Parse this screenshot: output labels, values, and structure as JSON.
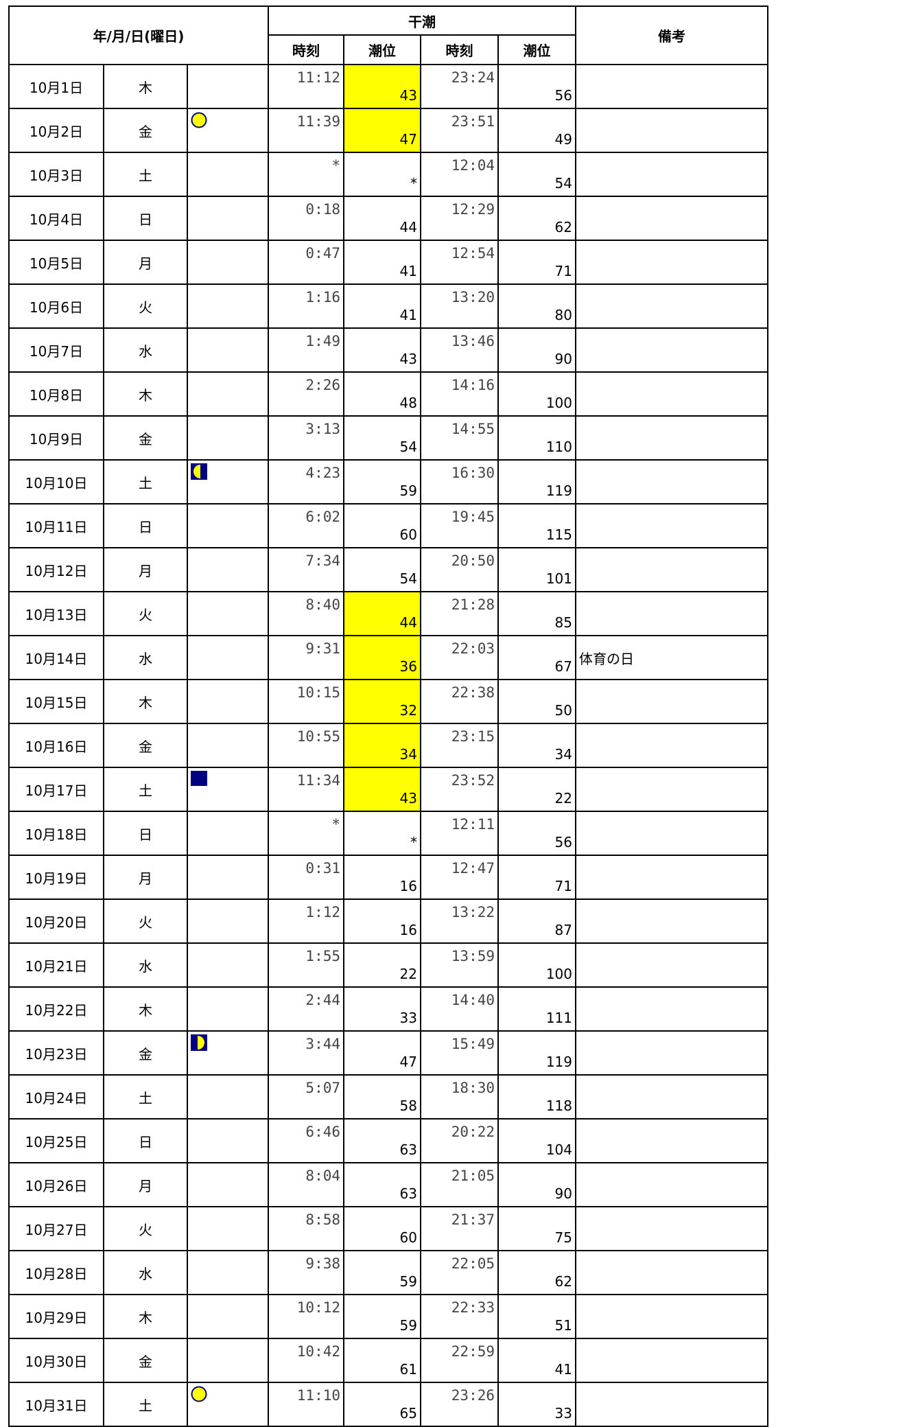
{
  "table": {
    "header": {
      "date": "年/月/日(曜日)",
      "low_tide": "干潮",
      "time": "時刻",
      "level": "潮位",
      "note": "備考"
    },
    "rows": [
      {
        "date": "10月1日",
        "weekday": "木",
        "time1": "11:12",
        "level1": 43,
        "time2": "23:24",
        "level2": 56,
        "highlight": true
      },
      {
        "date": "10月2日",
        "weekday": "金",
        "moon": "full",
        "time1": "11:39",
        "level1": 47,
        "time2": "23:51",
        "level2": 49,
        "highlight": true
      },
      {
        "date": "10月3日",
        "weekday": "土",
        "time1": "*",
        "level1": "*",
        "time2": "12:04",
        "level2": 54
      },
      {
        "date": "10月4日",
        "weekday": "日",
        "time1": "0:18",
        "level1": 44,
        "time2": "12:29",
        "level2": 62
      },
      {
        "date": "10月5日",
        "weekday": "月",
        "time1": "0:47",
        "level1": 41,
        "time2": "12:54",
        "level2": 71
      },
      {
        "date": "10月6日",
        "weekday": "火",
        "time1": "1:16",
        "level1": 41,
        "time2": "13:20",
        "level2": 80
      },
      {
        "date": "10月7日",
        "weekday": "水",
        "time1": "1:49",
        "level1": 43,
        "time2": "13:46",
        "level2": 90
      },
      {
        "date": "10月8日",
        "weekday": "木",
        "time1": "2:26",
        "level1": 48,
        "time2": "14:16",
        "level2": 100
      },
      {
        "date": "10月9日",
        "weekday": "金",
        "time1": "3:13",
        "level1": 54,
        "time2": "14:55",
        "level2": 110
      },
      {
        "date": "10月10日",
        "weekday": "土",
        "moon": "last-quarter",
        "time1": "4:23",
        "level1": 59,
        "time2": "16:30",
        "level2": 119
      },
      {
        "date": "10月11日",
        "weekday": "日",
        "time1": "6:02",
        "level1": 60,
        "time2": "19:45",
        "level2": 115
      },
      {
        "date": "10月12日",
        "weekday": "月",
        "time1": "7:34",
        "level1": 54,
        "time2": "20:50",
        "level2": 101
      },
      {
        "date": "10月13日",
        "weekday": "火",
        "time1": "8:40",
        "level1": 44,
        "time2": "21:28",
        "level2": 85,
        "highlight": true
      },
      {
        "date": "10月14日",
        "weekday": "水",
        "time1": "9:31",
        "level1": 36,
        "time2": "22:03",
        "level2": 67,
        "note": "体育の日",
        "highlight": true
      },
      {
        "date": "10月15日",
        "weekday": "木",
        "time1": "10:15",
        "level1": 32,
        "time2": "22:38",
        "level2": 50,
        "highlight": true
      },
      {
        "date": "10月16日",
        "weekday": "金",
        "time1": "10:55",
        "level1": 34,
        "time2": "23:15",
        "level2": 34,
        "highlight": true
      },
      {
        "date": "10月17日",
        "weekday": "土",
        "moon": "new",
        "time1": "11:34",
        "level1": 43,
        "time2": "23:52",
        "level2": 22,
        "highlight": true
      },
      {
        "date": "10月18日",
        "weekday": "日",
        "time1": "*",
        "level1": "*",
        "time2": "12:11",
        "level2": 56
      },
      {
        "date": "10月19日",
        "weekday": "月",
        "time1": "0:31",
        "level1": 16,
        "time2": "12:47",
        "level2": 71
      },
      {
        "date": "10月20日",
        "weekday": "火",
        "time1": "1:12",
        "level1": 16,
        "time2": "13:22",
        "level2": 87
      },
      {
        "date": "10月21日",
        "weekday": "水",
        "time1": "1:55",
        "level1": 22,
        "time2": "13:59",
        "level2": 100
      },
      {
        "date": "10月22日",
        "weekday": "木",
        "time1": "2:44",
        "level1": 33,
        "time2": "14:40",
        "level2": 111
      },
      {
        "date": "10月23日",
        "weekday": "金",
        "moon": "first-quarter",
        "time1": "3:44",
        "level1": 47,
        "time2": "15:49",
        "level2": 119
      },
      {
        "date": "10月24日",
        "weekday": "土",
        "time1": "5:07",
        "level1": 58,
        "time2": "18:30",
        "level2": 118
      },
      {
        "date": "10月25日",
        "weekday": "日",
        "time1": "6:46",
        "level1": 63,
        "time2": "20:22",
        "level2": 104
      },
      {
        "date": "10月26日",
        "weekday": "月",
        "time1": "8:04",
        "level1": 63,
        "time2": "21:05",
        "level2": 90
      },
      {
        "date": "10月27日",
        "weekday": "火",
        "time1": "8:58",
        "level1": 60,
        "time2": "21:37",
        "level2": 75
      },
      {
        "date": "10月28日",
        "weekday": "水",
        "time1": "9:38",
        "level1": 59,
        "time2": "22:05",
        "level2": 62
      },
      {
        "date": "10月29日",
        "weekday": "木",
        "time1": "10:12",
        "level1": 59,
        "time2": "22:33",
        "level2": 51
      },
      {
        "date": "10月30日",
        "weekday": "金",
        "time1": "10:42",
        "level1": 61,
        "time2": "22:59",
        "level2": 41
      },
      {
        "date": "10月31日",
        "weekday": "土",
        "moon": "full",
        "time1": "11:10",
        "level1": 65,
        "time2": "23:26",
        "level2": 33
      }
    ]
  }
}
